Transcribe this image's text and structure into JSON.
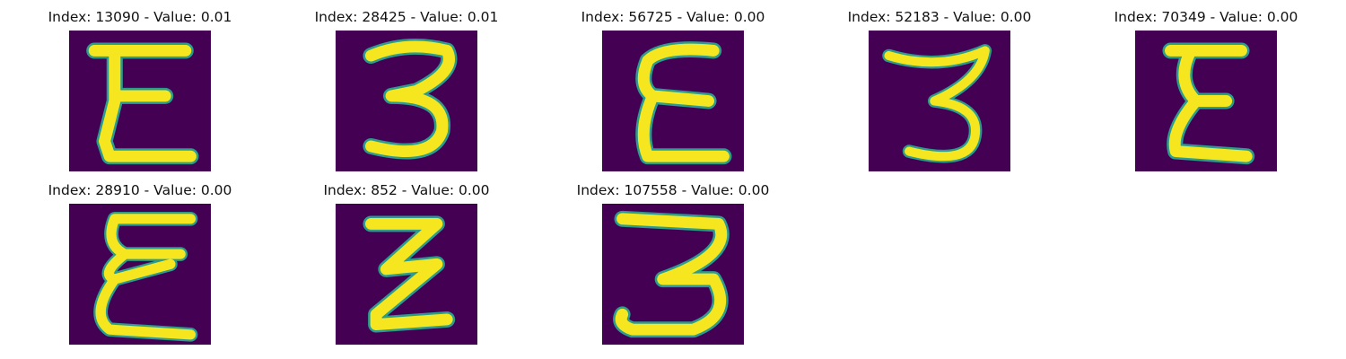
{
  "figure": {
    "images": [
      {
        "title": "Index: 13090 - Value: 0.01",
        "glyph": "E-shape",
        "colormap": [
          "#440154",
          "#21918c",
          "#fde725"
        ]
      },
      {
        "title": "Index: 28425 - Value: 0.01",
        "glyph": "3-shape"
      },
      {
        "title": "Index: 56725 - Value: 0.00",
        "glyph": "E-shape"
      },
      {
        "title": "Index: 52183 - Value: 0.00",
        "glyph": "3-shape"
      },
      {
        "title": "Index: 70349 - Value: 0.00",
        "glyph": "E-shape"
      },
      {
        "title": "Index: 28910 - Value: 0.00",
        "glyph": "E-shape"
      },
      {
        "title": "Index: 852 - Value: 0.00",
        "glyph": "Z-shape"
      },
      {
        "title": "Index: 107558 - Value: 0.00",
        "glyph": "3-shape"
      }
    ]
  }
}
